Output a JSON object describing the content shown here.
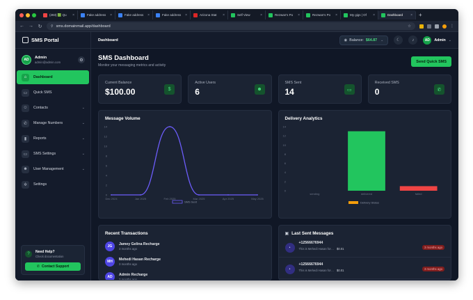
{
  "browser": {
    "tabs": [
      {
        "title": "(283) 🟩 Qu",
        "color": "#ef4444"
      },
      {
        "title": "Fake address",
        "color": "#3b82f6"
      },
      {
        "title": "Fake address",
        "color": "#3b82f6"
      },
      {
        "title": "Fake address",
        "color": "#3b82f6"
      },
      {
        "title": "Arizona Stat",
        "color": "#dc2626"
      },
      {
        "title": "Self View",
        "color": "#22c55e"
      },
      {
        "title": "Rezwan's Po",
        "color": "#22c55e"
      },
      {
        "title": "Rezwan's Po",
        "color": "#22c55e"
      },
      {
        "title": "My gigs | Of",
        "color": "#22c55e"
      },
      {
        "title": "Dashboard",
        "color": "#22c55e"
      }
    ],
    "url": "sms.domainmail.app/dashboard"
  },
  "sidebar": {
    "brand": "SMS Portal",
    "user": {
      "initials": "AD",
      "name": "Admin",
      "email": "admin@admin.com"
    },
    "items": [
      {
        "label": "Dashboard",
        "icon": "home-icon",
        "glyph": "⌂",
        "chevron": false,
        "active": true
      },
      {
        "label": "Quick SMS",
        "icon": "message-icon",
        "glyph": "▭",
        "chevron": false,
        "active": false
      },
      {
        "label": "Contacts",
        "icon": "contacts-icon",
        "glyph": "☺",
        "chevron": true,
        "active": false
      },
      {
        "label": "Manage Numbers",
        "icon": "phone-icon",
        "glyph": "✆",
        "chevron": true,
        "active": false
      },
      {
        "label": "Reports",
        "icon": "chart-icon",
        "glyph": "▮",
        "chevron": true,
        "active": false
      },
      {
        "label": "SMS Settings",
        "icon": "chat-settings-icon",
        "glyph": "▭",
        "chevron": true,
        "active": false
      },
      {
        "label": "User Management",
        "icon": "users-icon",
        "glyph": "☻",
        "chevron": true,
        "active": false
      },
      {
        "label": "Settings",
        "icon": "gear-icon",
        "glyph": "✲",
        "chevron": false,
        "active": false
      }
    ],
    "help": {
      "title": "Need Help?",
      "subtitle": "Check documentation",
      "button": "Contact Support"
    }
  },
  "topbar": {
    "breadcrumb": "Dashboard",
    "balance_label": "Balance:",
    "balance_value": "$64.87",
    "admin_initials": "AD",
    "admin_name": "Admin"
  },
  "page": {
    "title": "SMS Dashboard",
    "subtitle": "Monitor your messaging metrics and activity",
    "send_button": "Send Quick SMS"
  },
  "stats": [
    {
      "label": "Current Balance",
      "value": "$100.00",
      "icon": "dollar-icon",
      "glyph": "$"
    },
    {
      "label": "Active Users",
      "value": "6",
      "icon": "users-icon",
      "glyph": "☻"
    },
    {
      "label": "SMS Sent",
      "value": "14",
      "icon": "message-icon",
      "glyph": "▭"
    },
    {
      "label": "Received SMS",
      "value": "0",
      "icon": "phone-icon",
      "glyph": "✆"
    }
  ],
  "cards": {
    "volume_title": "Message Volume",
    "delivery_title": "Delivery Analytics",
    "transactions_title": "Recent Transactions",
    "messages_title": "Last Sent Messages"
  },
  "chart_data": [
    {
      "type": "line",
      "title": "Message Volume",
      "categories": [
        "Dec 2024",
        "Jan 2025",
        "Feb 2025",
        "Mar 2025",
        "Apr 2025",
        "May 2025"
      ],
      "series": [
        {
          "name": "SMS Sent",
          "values": [
            0,
            0,
            14,
            0,
            0,
            0
          ]
        }
      ],
      "yticks": [
        0,
        2,
        4,
        6,
        8,
        10,
        12,
        14
      ],
      "ylim": [
        0,
        14
      ],
      "color": "#6d5dfc",
      "legend": "bottom"
    },
    {
      "type": "bar",
      "title": "Delivery Analytics",
      "categories": [
        "sending",
        "delivered",
        "failed"
      ],
      "series": [
        {
          "name": "Delivery Status",
          "values": [
            0,
            13,
            1
          ]
        }
      ],
      "colors": [
        "#22c55e",
        "#22c55e",
        "#ef4444"
      ],
      "yticks": [
        0,
        2,
        4,
        6,
        8,
        10,
        12,
        14
      ],
      "ylim": [
        0,
        14
      ],
      "legend": "bottom",
      "legend_color": "#f59e0b"
    }
  ],
  "transactions": [
    {
      "initials": "JG",
      "title": "Jamey Gelina Recharge",
      "time": "3 months ago"
    },
    {
      "initials": "MH",
      "title": "Mehedi Hasan Recharge",
      "time": "3 months ago"
    },
    {
      "initials": "AD",
      "title": "Admin Recharge",
      "time": "3 months ago"
    }
  ],
  "messages": [
    {
      "phone": "+12566676944",
      "text": "This is Mehedi Hasan for…",
      "cost": "$0.01",
      "badge": "3 months ago"
    },
    {
      "phone": "+12566676944",
      "text": "This is Mehedi Hasan for…",
      "cost": "$0.01",
      "badge": "3 months ago"
    }
  ]
}
